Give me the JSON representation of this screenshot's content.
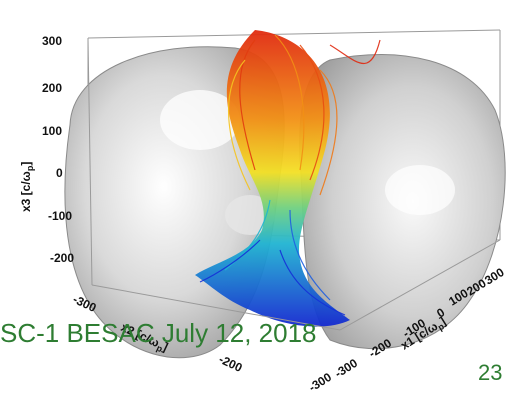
{
  "figure": {
    "z_ticks": [
      "300",
      "200",
      "100",
      "0",
      "-100",
      "-200"
    ],
    "z_label": "x3 [c/ω",
    "z_label_sub": "p",
    "x2_ticks": [
      "-300",
      "-200"
    ],
    "x2_label": "x2 [c/ω",
    "x1_ticks": [
      "-300",
      "-300",
      "-200",
      "-100",
      "0",
      "100",
      "200",
      "300"
    ],
    "x1_label": "x1 [c/ω",
    "x1_label_sub": "p",
    "colors": {
      "surface": "#d3d3d3",
      "box": "#8c8c8c",
      "field_top": "#e23c10",
      "field_mid": "#f5d21f",
      "field_low": "#1fb6d0",
      "field_bottom": "#1530d8"
    }
  },
  "footer": {
    "label": "SC-1 BESAC July 12, 2018",
    "page_number": "23"
  }
}
